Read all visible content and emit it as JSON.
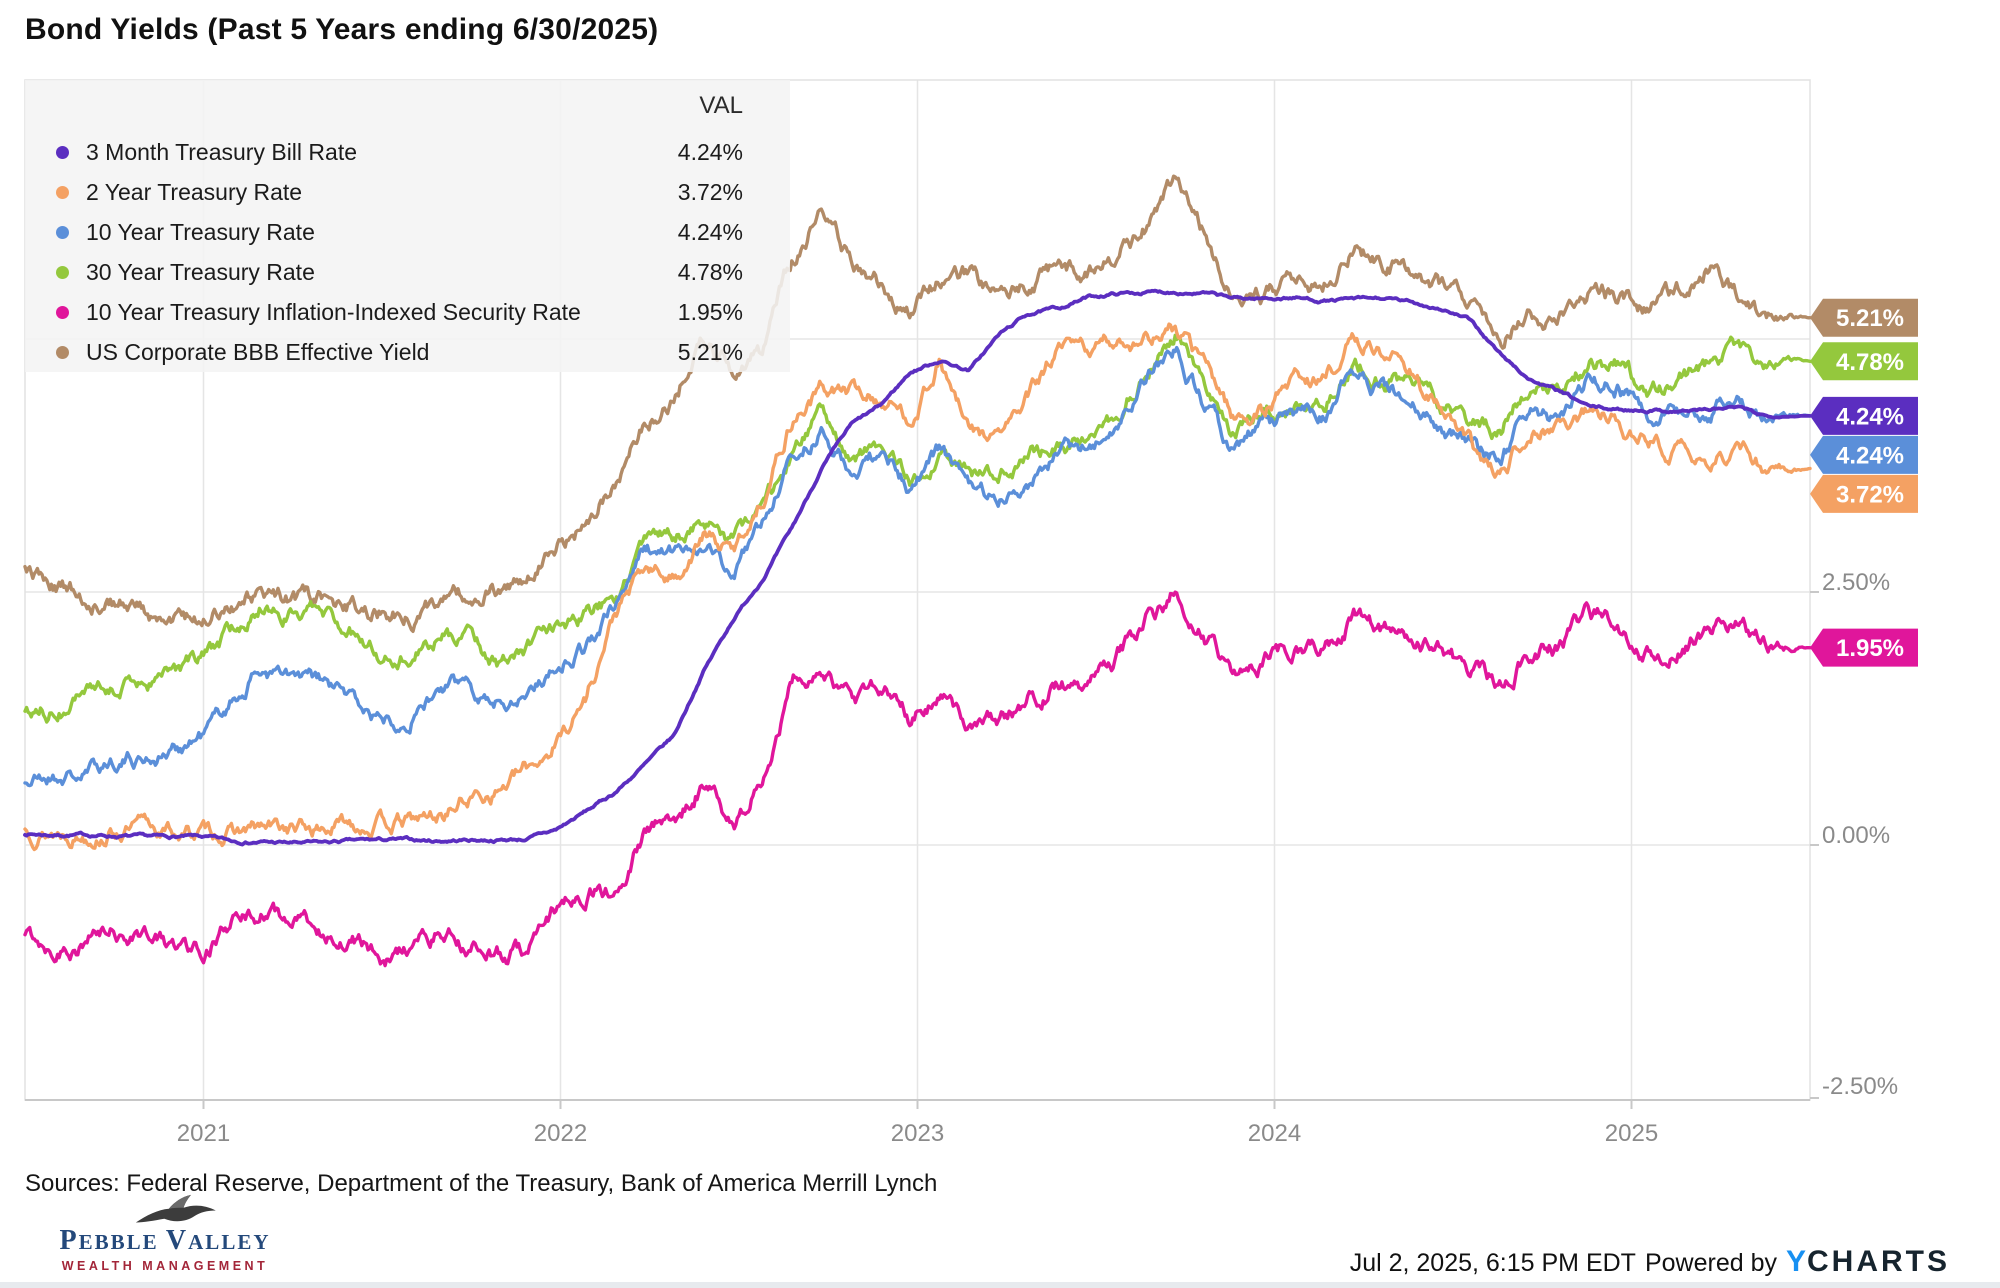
{
  "title": "Bond Yields (Past 5 Years ending 6/30/2025)",
  "sources_line": "Sources: Federal Reserve, Department of the Treasury, Bank of America Merrill Lynch",
  "footer": {
    "timestamp": "Jul 2, 2025, 6:15 PM EDT",
    "powered_by": "Powered by",
    "ycharts_y": "Y",
    "ycharts_rest": "CHARTS"
  },
  "logo": {
    "word1_initial": "P",
    "word1_rest": "EBBLE ",
    "word2_initial": "V",
    "word2_rest": "ALLEY",
    "subtitle": "WEALTH MANAGEMENT",
    "navy": "#24497B",
    "red": "#A32639",
    "eagle_icon": "eagle-silhouette"
  },
  "legend": {
    "val_header": "VAL",
    "items": [
      {
        "label": "3 Month Treasury Bill Rate",
        "val": "4.24%"
      },
      {
        "label": "2 Year Treasury Rate",
        "val": "3.72%"
      },
      {
        "label": "10 Year Treasury Rate",
        "val": "4.24%"
      },
      {
        "label": "30 Year Treasury Rate",
        "val": "4.78%"
      },
      {
        "label": "10 Year Treasury Inflation-Indexed Security Rate",
        "val": "1.95%"
      },
      {
        "label": "US Corporate BBB Effective Yield",
        "val": "5.21%"
      }
    ]
  },
  "axes": {
    "x_ticks": [
      "2021",
      "2022",
      "2023",
      "2024",
      "2025"
    ],
    "y_ticks": [
      {
        "label": "2.50%",
        "value": 2.5
      },
      {
        "label": "0.00%",
        "value": 0.0
      },
      {
        "label": "-2.50%",
        "value": -2.5
      }
    ],
    "y_gridline_values": [
      5.0,
      2.5,
      0.0
    ],
    "tick_color": "#8a8a8a",
    "grid_color": "#e5e5e5",
    "border_color": "#e2e2e2",
    "axis_line_color": "#c8c8c8"
  },
  "chart_data": {
    "type": "line",
    "title": "Bond Yields (Past 5 Years ending 6/30/2025)",
    "x_range": [
      "2020-07-01",
      "2025-06-30"
    ],
    "cadence": "monthly",
    "ylim": [
      -2.57,
      7.56
    ],
    "grid": true,
    "legend_position": "top-left",
    "unit": "%",
    "series": [
      {
        "name": "3 Month Treasury Bill Rate",
        "color": "#5B2EC0",
        "final_label": "4.24%",
        "values": [
          0.11,
          0.1,
          0.1,
          0.09,
          0.08,
          0.08,
          0.08,
          0.04,
          0.03,
          0.02,
          0.02,
          0.04,
          0.05,
          0.05,
          0.04,
          0.05,
          0.05,
          0.06,
          0.15,
          0.33,
          0.52,
          0.79,
          1.08,
          1.72,
          2.23,
          2.63,
          3.13,
          3.72,
          4.15,
          4.34,
          4.67,
          4.79,
          4.69,
          5.04,
          5.25,
          5.3,
          5.41,
          5.45,
          5.46,
          5.47,
          5.45,
          5.4,
          5.4,
          5.41,
          5.38,
          5.39,
          5.4,
          5.36,
          5.3,
          5.18,
          4.85,
          4.6,
          4.48,
          4.33,
          4.3,
          4.3,
          4.29,
          4.3,
          4.32,
          4.24
        ]
      },
      {
        "name": "2 Year Treasury Rate",
        "color": "#F4A163",
        "final_label": "3.72%",
        "values": [
          0.15,
          0.14,
          0.13,
          0.15,
          0.17,
          0.13,
          0.12,
          0.12,
          0.15,
          0.16,
          0.15,
          0.22,
          0.22,
          0.22,
          0.28,
          0.46,
          0.56,
          0.73,
          1.02,
          1.45,
          2.28,
          2.7,
          2.63,
          3.06,
          2.88,
          3.45,
          4.22,
          4.51,
          4.48,
          4.41,
          4.21,
          4.81,
          4.05,
          4.04,
          4.4,
          4.87,
          4.88,
          4.98,
          5.03,
          5.08,
          4.73,
          4.23,
          4.27,
          4.64,
          4.59,
          4.98,
          4.89,
          4.71,
          4.29,
          3.91,
          3.6,
          4.16,
          4.17,
          4.25,
          4.22,
          3.99,
          3.89,
          3.74,
          3.92,
          3.72
        ]
      },
      {
        "name": "10 Year Treasury Rate",
        "color": "#5B8FD9",
        "final_label": "4.24%",
        "values": [
          0.62,
          0.68,
          0.68,
          0.85,
          0.86,
          0.93,
          1.08,
          1.42,
          1.74,
          1.63,
          1.59,
          1.45,
          1.24,
          1.3,
          1.52,
          1.58,
          1.43,
          1.52,
          1.79,
          1.97,
          2.34,
          2.93,
          2.85,
          3.02,
          2.65,
          3.19,
          3.83,
          4.1,
          3.68,
          3.88,
          3.52,
          3.92,
          3.48,
          3.45,
          3.64,
          3.84,
          3.97,
          4.09,
          4.58,
          4.93,
          4.33,
          3.88,
          4.14,
          4.25,
          4.2,
          4.68,
          4.51,
          4.36,
          4.09,
          3.91,
          3.78,
          4.28,
          4.18,
          4.58,
          4.54,
          4.21,
          4.23,
          4.3,
          4.42,
          4.24
        ]
      },
      {
        "name": "30 Year Treasury Rate",
        "color": "#94C83D",
        "final_label": "4.78%",
        "values": [
          1.31,
          1.36,
          1.42,
          1.57,
          1.62,
          1.67,
          1.82,
          2.08,
          2.41,
          2.3,
          2.32,
          2.16,
          1.94,
          1.92,
          2.04,
          2.06,
          1.79,
          1.9,
          2.11,
          2.25,
          2.44,
          2.94,
          3.07,
          3.14,
          2.96,
          3.33,
          3.79,
          4.25,
          3.8,
          3.97,
          3.66,
          3.93,
          3.66,
          3.68,
          3.86,
          3.91,
          4.02,
          4.22,
          4.73,
          5.08,
          4.5,
          4.03,
          4.35,
          4.38,
          4.35,
          4.79,
          4.65,
          4.51,
          4.33,
          4.2,
          4.1,
          4.55,
          4.45,
          4.8,
          4.77,
          4.45,
          4.57,
          4.72,
          4.95,
          4.78
        ]
      },
      {
        "name": "10 Year Treasury Inflation-Indexed Security Rate",
        "color": "#E0169B",
        "final_label": "1.95%",
        "values": [
          -0.88,
          -0.98,
          -0.95,
          -0.87,
          -0.85,
          -1.02,
          -1.01,
          -0.81,
          -0.66,
          -0.77,
          -0.84,
          -0.87,
          -1.13,
          -1.05,
          -0.88,
          -1.0,
          -1.07,
          -1.04,
          -0.61,
          -0.43,
          -0.49,
          0.11,
          0.22,
          0.65,
          0.11,
          0.67,
          1.65,
          1.7,
          1.38,
          1.57,
          1.26,
          1.55,
          1.16,
          1.23,
          1.43,
          1.6,
          1.58,
          1.84,
          2.24,
          2.48,
          2.07,
          1.72,
          1.86,
          1.94,
          1.88,
          2.26,
          2.12,
          2.07,
          1.87,
          1.73,
          1.6,
          1.94,
          1.95,
          2.26,
          2.17,
          1.91,
          1.95,
          2.12,
          2.18,
          1.95
        ]
      },
      {
        "name": "US Corporate BBB Effective Yield",
        "color": "#B28B67",
        "final_label": "5.21%",
        "values": [
          2.7,
          2.55,
          2.48,
          2.43,
          2.29,
          2.21,
          2.28,
          2.4,
          2.55,
          2.42,
          2.4,
          2.39,
          2.31,
          2.28,
          2.39,
          2.47,
          2.52,
          2.56,
          2.92,
          3.19,
          3.62,
          4.18,
          4.5,
          4.97,
          4.69,
          4.87,
          5.76,
          6.35,
          5.8,
          5.59,
          5.31,
          5.57,
          5.64,
          5.43,
          5.58,
          5.69,
          5.7,
          5.79,
          6.12,
          6.6,
          6.03,
          5.46,
          5.45,
          5.6,
          5.52,
          5.89,
          5.78,
          5.71,
          5.54,
          5.28,
          5.02,
          5.25,
          5.25,
          5.47,
          5.42,
          5.31,
          5.45,
          5.75,
          5.48,
          5.21
        ]
      }
    ]
  }
}
